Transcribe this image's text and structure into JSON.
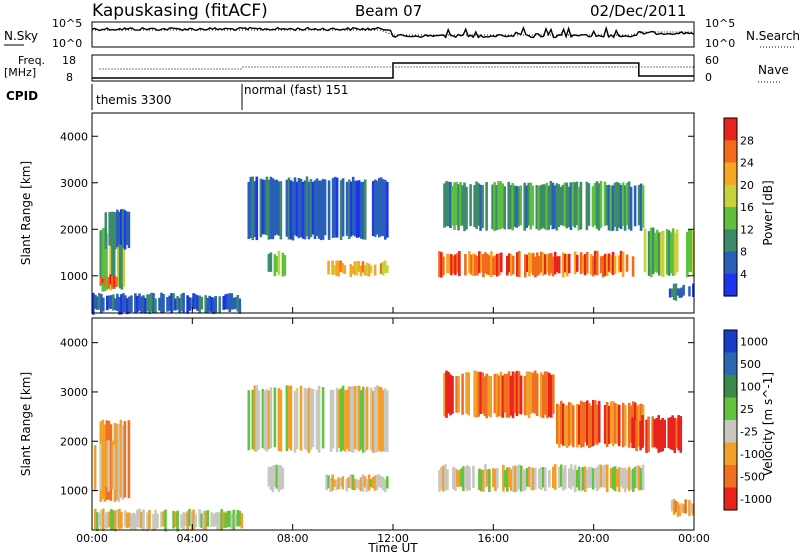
{
  "header": {
    "station": "Kapuskasing (fitACF)",
    "beam": "Beam 07",
    "date": "02/Dec/2011"
  },
  "noise_panel": {
    "left_label": "N.Sky",
    "right_label": "N.Search",
    "left_ticks": [
      "10^5",
      "10^0"
    ],
    "right_ticks": [
      "10^5",
      "10^0"
    ]
  },
  "freq_panel": {
    "left_label_line1": "Freq.",
    "left_label_line2": "[MHz]",
    "right_label": "Nave",
    "left_ticks": [
      "18",
      "8"
    ],
    "right_ticks": [
      "60",
      "0"
    ]
  },
  "cpid_panel": {
    "label": "CPID",
    "segments": [
      {
        "name": "themis 3300",
        "start_hour": 0,
        "end_hour": 6
      },
      {
        "name": "normal (fast) 151",
        "start_hour": 6,
        "end_hour": 24
      }
    ]
  },
  "colors": {
    "power_scale": [
      "#1d33ee",
      "#2a5fb8",
      "#3c8c6c",
      "#5fbf3f",
      "#c8d23a",
      "#f5a623",
      "#f26a1b",
      "#e8231d"
    ],
    "velocity_scale": [
      "#1a3ec8",
      "#2c68b0",
      "#3b8a4a",
      "#62c43c",
      "#c8c8c0",
      "#f2a02a",
      "#f07020",
      "#e8231d"
    ],
    "ground_scatter": "#c8c8c0"
  },
  "chart_data": [
    {
      "type": "heatmap",
      "name": "power",
      "ylabel": "Slant Range [km]",
      "ylim": [
        200,
        4500
      ],
      "yticks": [
        "1000",
        "2000",
        "3000",
        "4000"
      ],
      "colorbar_label": "Power [dB]",
      "colorbar_ticks": [
        "4",
        "8",
        "12",
        "16",
        "20",
        "24",
        "28"
      ],
      "regions": [
        {
          "t": [
            0.3,
            1.3
          ],
          "r": [
            700,
            2000
          ],
          "level": 3
        },
        {
          "t": [
            0.3,
            1.0
          ],
          "r": [
            750,
            1000
          ],
          "level": 7
        },
        {
          "t": [
            0.5,
            1.5
          ],
          "r": [
            1600,
            2400
          ],
          "level": 1
        },
        {
          "t": [
            6.2,
            11.8
          ],
          "r": [
            1800,
            3100
          ],
          "level": 1
        },
        {
          "t": [
            7.0,
            7.8
          ],
          "r": [
            1000,
            1500
          ],
          "level": 3
        },
        {
          "t": [
            9.3,
            11.8
          ],
          "r": [
            1000,
            1300
          ],
          "level": 5
        },
        {
          "t": [
            13.8,
            21.6
          ],
          "r": [
            1000,
            1500
          ],
          "level": 6
        },
        {
          "t": [
            14.0,
            22.0
          ],
          "r": [
            2000,
            3000
          ],
          "level": 2
        },
        {
          "t": [
            22.0,
            24.0
          ],
          "r": [
            1000,
            2000
          ],
          "level": 3
        },
        {
          "t": [
            0.0,
            6.0
          ],
          "r": [
            200,
            600
          ],
          "level": 1
        },
        {
          "t": [
            23.0,
            24.0
          ],
          "r": [
            500,
            800
          ],
          "level": 1
        }
      ]
    },
    {
      "type": "heatmap",
      "name": "velocity",
      "ylabel": "Slant Range [km]",
      "ylim": [
        200,
        4500
      ],
      "yticks": [
        "1000",
        "2000",
        "3000",
        "4000"
      ],
      "xlabel": "Time UT",
      "xticks": [
        "00:00",
        "04:00",
        "08:00",
        "12:00",
        "16:00",
        "20:00",
        "00:00"
      ],
      "colorbar_label": "Velocity [m s^-1]",
      "colorbar_ticks": [
        "1000",
        "500",
        "100",
        "25",
        "-25",
        "-100",
        "-500",
        "-1000"
      ],
      "regions": [
        {
          "t": [
            0.3,
            1.5
          ],
          "r": [
            800,
            2400
          ],
          "level": 5
        },
        {
          "t": [
            0.0,
            1.0
          ],
          "r": [
            1000,
            2000
          ],
          "level": 4
        },
        {
          "t": [
            6.2,
            11.8
          ],
          "r": [
            1800,
            3100
          ],
          "level": 4
        },
        {
          "t": [
            7.0,
            7.8
          ],
          "r": [
            1000,
            1500
          ],
          "level": 3
        },
        {
          "t": [
            9.3,
            11.8
          ],
          "r": [
            1000,
            1300
          ],
          "level": 4
        },
        {
          "t": [
            13.8,
            22.0
          ],
          "r": [
            1000,
            1500
          ],
          "level": 4
        },
        {
          "t": [
            14.0,
            18.5
          ],
          "r": [
            2500,
            3400
          ],
          "level": 6
        },
        {
          "t": [
            18.5,
            22.0
          ],
          "r": [
            1900,
            2800
          ],
          "level": 6
        },
        {
          "t": [
            21.5,
            23.5
          ],
          "r": [
            1800,
            2500
          ],
          "level": 7
        },
        {
          "t": [
            23.0,
            24.0
          ],
          "r": [
            500,
            800
          ],
          "level": 5
        },
        {
          "t": [
            0.0,
            6.0
          ],
          "r": [
            200,
            600
          ],
          "level": 4
        }
      ]
    }
  ],
  "footer": {
    "xlabel": "Time UT"
  }
}
